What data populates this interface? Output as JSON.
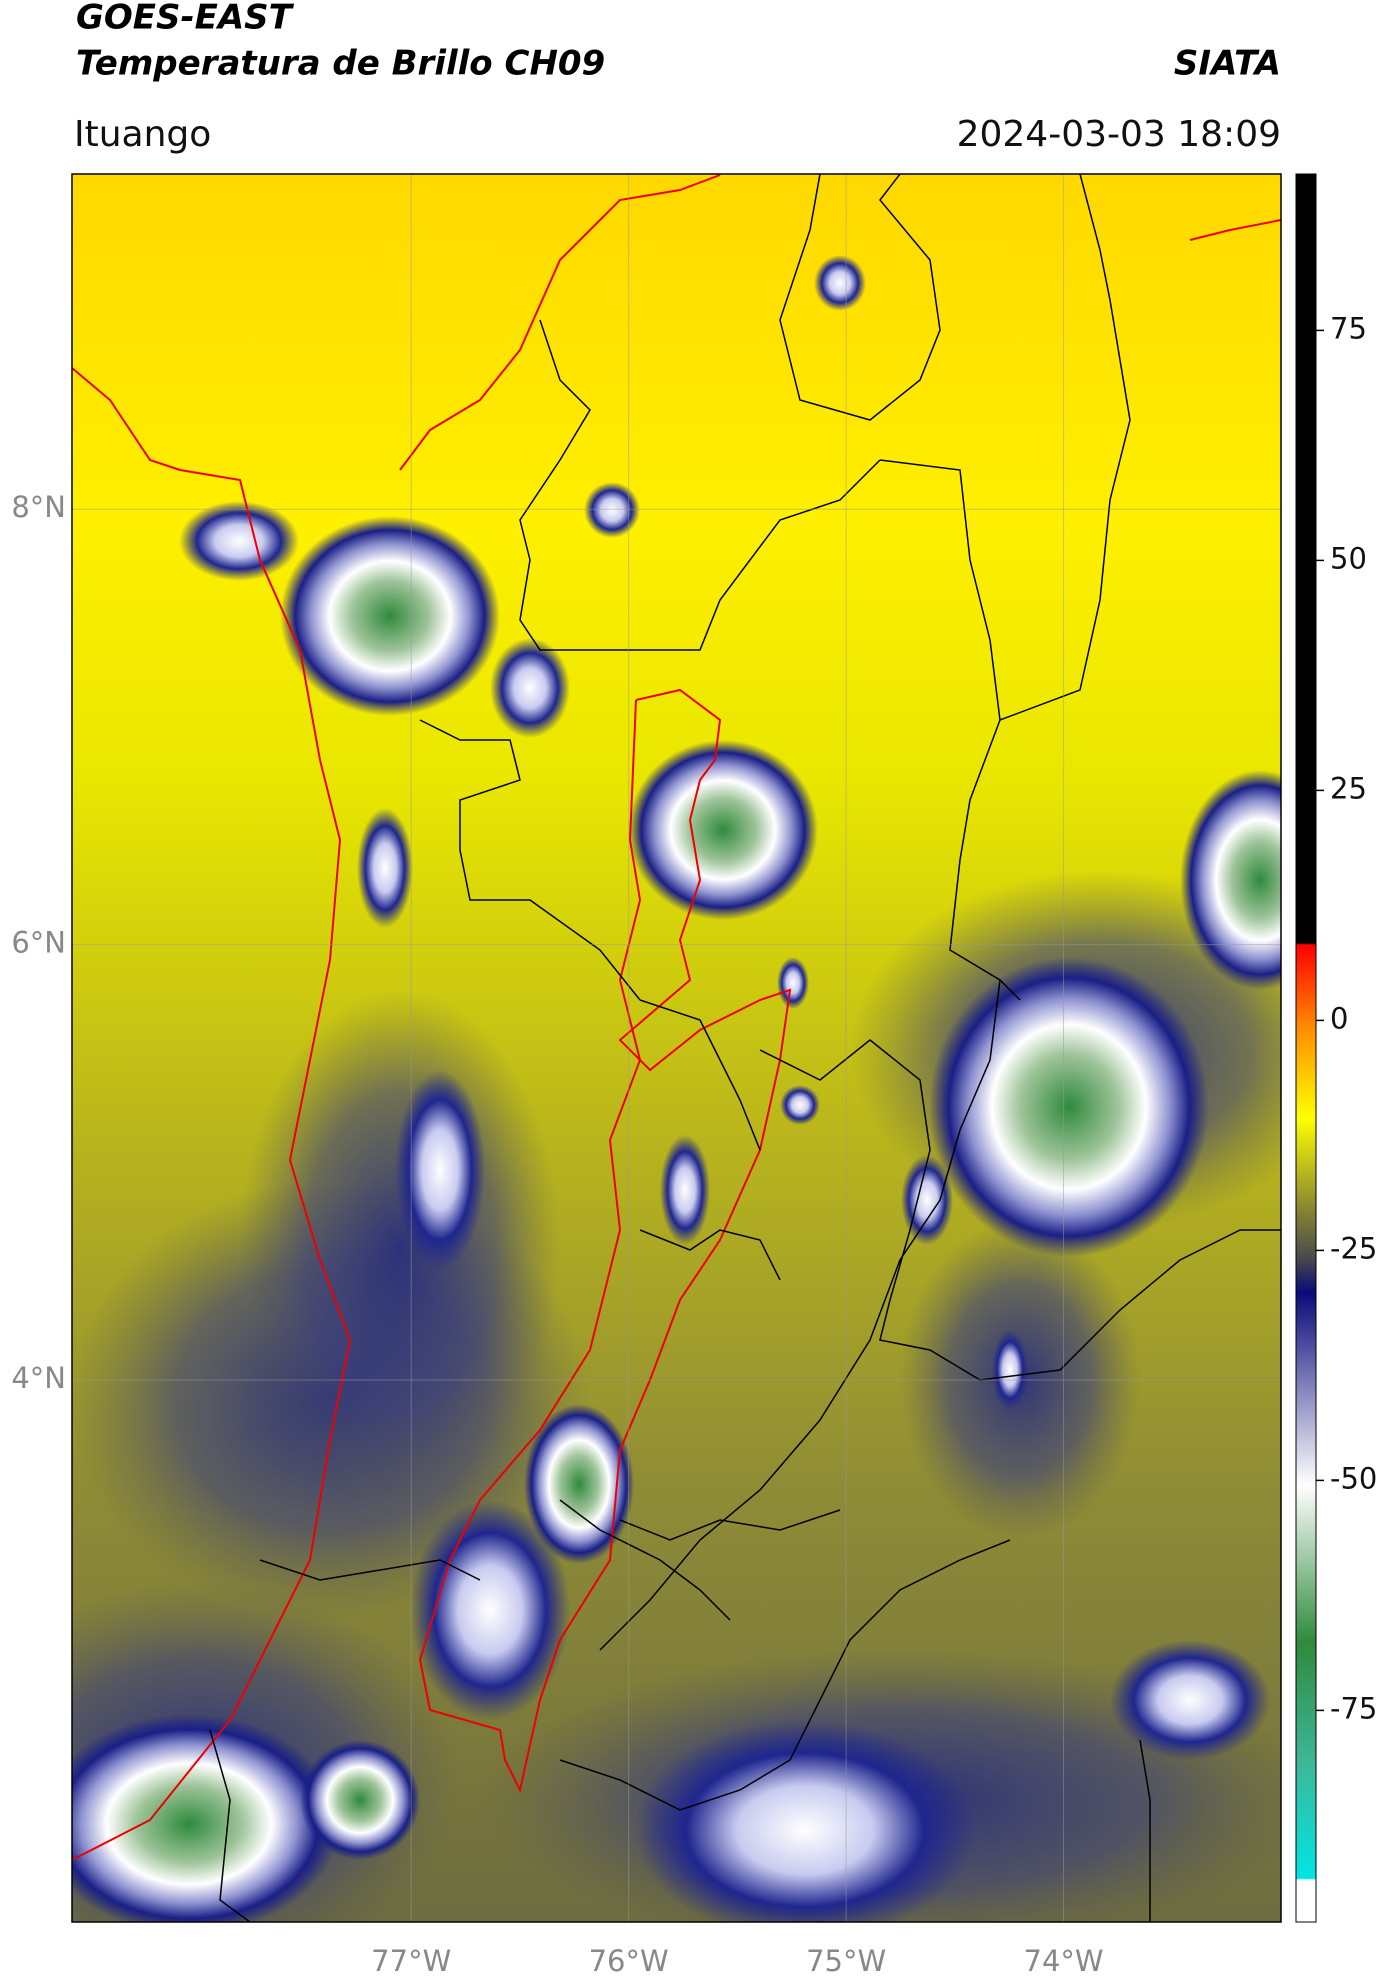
{
  "header": {
    "title_line1": "GOES-EAST",
    "title_line2": "Temperatura de Brillo CH09",
    "organization": "SIATA",
    "location": "Ituango",
    "datetime": "2024-03-03 18:09"
  },
  "map": {
    "lon_range": [
      -78.56,
      -73.0
    ],
    "lat_range": [
      1.51,
      9.54
    ],
    "xticks": [
      {
        "value": -77,
        "label": "77°W"
      },
      {
        "value": -76,
        "label": "76°W"
      },
      {
        "value": -75,
        "label": "75°W"
      },
      {
        "value": -74,
        "label": "74°W"
      }
    ],
    "yticks": [
      {
        "value": 8,
        "label": "8°N"
      },
      {
        "value": 6,
        "label": "6°N"
      },
      {
        "value": 4,
        "label": "4°N"
      }
    ],
    "grid": true
  },
  "colorbar": {
    "clim": [
      -98,
      92
    ],
    "ticks": [
      75,
      50,
      25,
      0,
      -25,
      -50,
      -75
    ]
  }
}
